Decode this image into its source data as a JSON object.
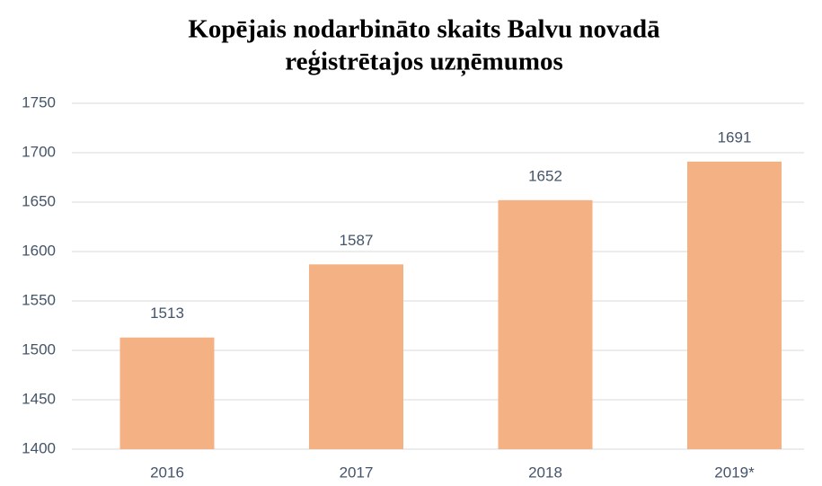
{
  "chart_data": {
    "type": "bar",
    "title": [
      "Kopējais nodarbināto skaits Balvu novadā",
      "reģistrētajos uzņēmumos"
    ],
    "categories": [
      "2016",
      "2017",
      "2018",
      "2019*"
    ],
    "values": [
      1513,
      1587,
      1652,
      1691
    ],
    "color": "#f4b183",
    "ylim": [
      1400,
      1750
    ],
    "yticks": [
      1400,
      1450,
      1500,
      1550,
      1600,
      1650,
      1700,
      1750
    ],
    "grid": true
  }
}
